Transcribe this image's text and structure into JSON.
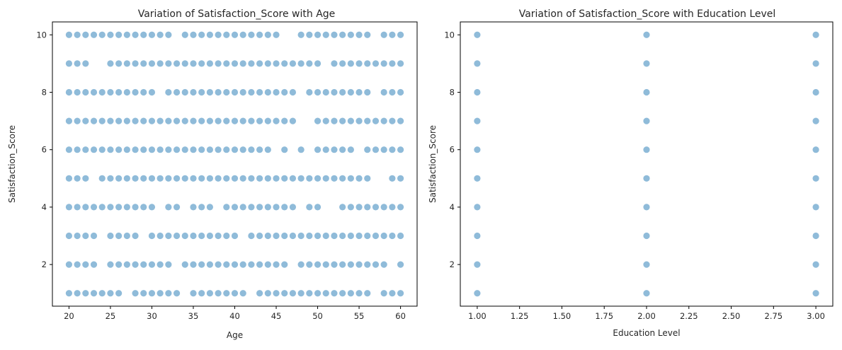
{
  "chart_data": [
    {
      "type": "scatter",
      "title": "Variation of Satisfaction_Score with Age",
      "xlabel": "Age",
      "ylabel": "Satisfaction_Score",
      "xlim": [
        18,
        62
      ],
      "ylim": [
        0.55,
        10.45
      ],
      "xticks": [
        20,
        25,
        30,
        35,
        40,
        45,
        50,
        55,
        60
      ],
      "xtick_labels": [
        "20",
        "25",
        "30",
        "35",
        "40",
        "45",
        "50",
        "55",
        "60"
      ],
      "yticks": [
        2,
        4,
        6,
        8,
        10
      ],
      "ytick_labels": [
        "2",
        "4",
        "6",
        "8",
        "10"
      ],
      "grid": false,
      "color": "#1f77b4",
      "alpha": 0.5,
      "series": [
        {
          "points": [
            {
              "y": 10,
              "x": [
                20,
                21,
                22,
                23,
                24,
                25,
                26,
                27,
                28,
                29,
                30,
                31,
                32,
                34,
                35,
                36,
                37,
                38,
                39,
                40,
                41,
                42,
                43,
                44,
                45,
                48,
                49,
                50,
                51,
                52,
                53,
                54,
                55,
                56,
                58,
                59,
                60
              ]
            },
            {
              "y": 9,
              "x": [
                20,
                21,
                22,
                25,
                26,
                27,
                28,
                29,
                30,
                31,
                32,
                33,
                34,
                35,
                36,
                37,
                38,
                39,
                40,
                41,
                42,
                43,
                44,
                45,
                46,
                47,
                48,
                49,
                50,
                52,
                53,
                54,
                55,
                56,
                57,
                58,
                59,
                60
              ]
            },
            {
              "y": 8,
              "x": [
                20,
                21,
                22,
                23,
                24,
                25,
                26,
                27,
                28,
                29,
                30,
                32,
                33,
                34,
                35,
                36,
                37,
                38,
                39,
                40,
                41,
                42,
                43,
                44,
                45,
                46,
                47,
                49,
                50,
                51,
                52,
                53,
                54,
                55,
                56,
                58,
                59,
                60
              ]
            },
            {
              "y": 7,
              "x": [
                20,
                21,
                22,
                23,
                24,
                25,
                26,
                27,
                28,
                29,
                30,
                31,
                32,
                33,
                34,
                35,
                36,
                37,
                38,
                39,
                40,
                41,
                42,
                43,
                44,
                45,
                46,
                47,
                50,
                51,
                52,
                53,
                54,
                55,
                56,
                57,
                58,
                59,
                60
              ]
            },
            {
              "y": 6,
              "x": [
                20,
                21,
                22,
                23,
                24,
                25,
                26,
                27,
                28,
                29,
                30,
                31,
                32,
                33,
                34,
                35,
                36,
                37,
                38,
                39,
                40,
                41,
                42,
                43,
                44,
                46,
                48,
                50,
                51,
                52,
                53,
                54,
                56,
                57,
                58,
                59,
                60
              ]
            },
            {
              "y": 5,
              "x": [
                20,
                21,
                22,
                24,
                25,
                26,
                27,
                28,
                29,
                30,
                31,
                32,
                33,
                34,
                35,
                36,
                37,
                38,
                39,
                40,
                41,
                42,
                43,
                44,
                45,
                46,
                47,
                48,
                49,
                50,
                51,
                52,
                53,
                54,
                55,
                56,
                59,
                60
              ]
            },
            {
              "y": 4,
              "x": [
                20,
                21,
                22,
                23,
                24,
                25,
                26,
                27,
                28,
                29,
                30,
                32,
                33,
                35,
                36,
                37,
                39,
                40,
                41,
                42,
                43,
                44,
                45,
                46,
                47,
                49,
                50,
                53,
                54,
                55,
                56,
                57,
                58,
                59,
                60
              ]
            },
            {
              "y": 3,
              "x": [
                20,
                21,
                22,
                23,
                25,
                26,
                27,
                28,
                30,
                31,
                32,
                33,
                34,
                35,
                36,
                37,
                38,
                39,
                40,
                42,
                43,
                44,
                45,
                46,
                47,
                48,
                49,
                50,
                51,
                52,
                53,
                54,
                55,
                56,
                57,
                58,
                59,
                60
              ]
            },
            {
              "y": 2,
              "x": [
                20,
                21,
                22,
                23,
                25,
                26,
                27,
                28,
                29,
                30,
                31,
                32,
                34,
                35,
                36,
                37,
                38,
                39,
                40,
                41,
                42,
                43,
                44,
                45,
                46,
                48,
                49,
                50,
                51,
                52,
                53,
                54,
                55,
                56,
                57,
                58,
                60
              ]
            },
            {
              "y": 1,
              "x": [
                20,
                21,
                22,
                23,
                24,
                25,
                26,
                28,
                29,
                30,
                31,
                32,
                33,
                35,
                36,
                37,
                38,
                39,
                40,
                41,
                43,
                44,
                45,
                46,
                47,
                48,
                49,
                50,
                51,
                52,
                53,
                54,
                55,
                56,
                58,
                59,
                60
              ]
            }
          ]
        }
      ]
    },
    {
      "type": "scatter",
      "title": "Variation of Satisfaction_Score with Education Level",
      "xlabel": "Education Level",
      "ylabel": "Satisfaction_Score",
      "xlim": [
        0.9,
        3.1
      ],
      "ylim": [
        0.55,
        10.45
      ],
      "xticks": [
        1.0,
        1.25,
        1.5,
        1.75,
        2.0,
        2.25,
        2.5,
        2.75,
        3.0
      ],
      "xtick_labels": [
        "1.00",
        "1.25",
        "1.50",
        "1.75",
        "2.00",
        "2.25",
        "2.50",
        "2.75",
        "3.00"
      ],
      "yticks": [
        2,
        4,
        6,
        8,
        10
      ],
      "ytick_labels": [
        "2",
        "4",
        "6",
        "8",
        "10"
      ],
      "grid": false,
      "color": "#1f77b4",
      "alpha": 0.5,
      "series": [
        {
          "points": [
            {
              "x": 1,
              "y": [
                1,
                2,
                3,
                4,
                5,
                6,
                7,
                8,
                9,
                10
              ]
            },
            {
              "x": 2,
              "y": [
                1,
                2,
                3,
                4,
                5,
                6,
                7,
                8,
                9,
                10
              ]
            },
            {
              "x": 3,
              "y": [
                1,
                2,
                3,
                4,
                5,
                6,
                7,
                8,
                9,
                10
              ]
            }
          ]
        }
      ]
    }
  ]
}
